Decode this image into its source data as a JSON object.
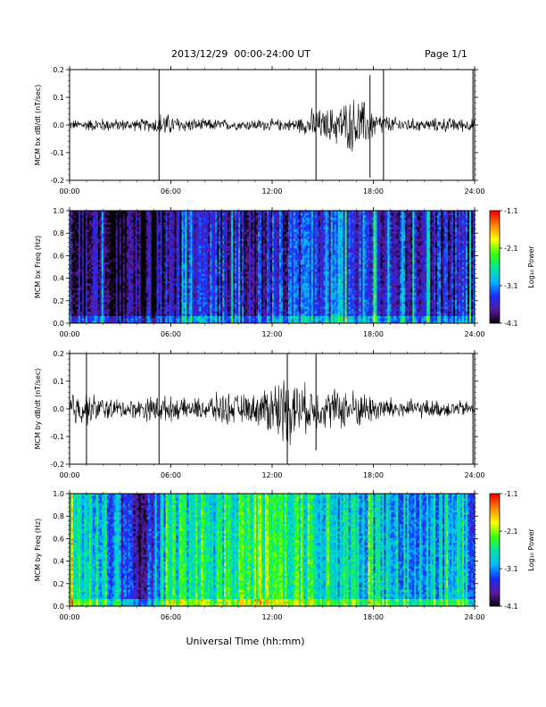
{
  "header": {
    "title": "2013/12/29  00:00-24:00 UT",
    "page": "Page 1/1"
  },
  "xaxis": {
    "ticks": [
      "00:00",
      "06:00",
      "12:00",
      "18:00",
      "24:00"
    ],
    "range_hours": [
      0,
      24
    ],
    "label": "Universal Time (hh:mm)"
  },
  "colorbar": {
    "ticks": [
      "-1.1",
      "-2.1",
      "-3.1",
      "-4.1"
    ],
    "label": "Log₁₀ Power",
    "colormap": [
      "#000000",
      "#5a1aa0",
      "#1a2cff",
      "#00b8ff",
      "#00e6a0",
      "#3cff00",
      "#ffff00",
      "#ff8800",
      "#ff0000"
    ]
  },
  "chart_data": [
    {
      "type": "line",
      "id": "bx_dbdt",
      "ylabel": "MCM bx dB/dt (nT/sec)",
      "ylim": [
        -0.2,
        0.2
      ],
      "yticks": [
        "0.2",
        "0.1",
        "0.0",
        "-0.1",
        "-0.2"
      ],
      "x_hours": [
        0,
        1,
        2,
        3,
        4,
        5,
        5.5,
        6,
        7,
        8,
        9,
        10,
        11,
        12,
        13,
        14,
        14.5,
        15,
        16,
        17,
        17.5,
        18,
        19,
        20,
        21,
        22,
        23,
        24
      ],
      "amplitude": [
        0.02,
        0.025,
        0.03,
        0.025,
        0.025,
        0.03,
        0.06,
        0.04,
        0.03,
        0.025,
        0.025,
        0.02,
        0.025,
        0.025,
        0.025,
        0.04,
        0.08,
        0.06,
        0.09,
        0.12,
        0.1,
        0.06,
        0.035,
        0.03,
        0.025,
        0.03,
        0.03,
        0.025
      ],
      "spikes": [
        {
          "x": 5.3,
          "min": -0.2,
          "max": 0.2
        },
        {
          "x": 14.6,
          "min": -0.2,
          "max": 0.2
        },
        {
          "x": 18.6,
          "min": -0.2,
          "max": 0.2
        },
        {
          "x": 23.9,
          "min": -0.2,
          "max": 0.2
        },
        {
          "x": 17.8,
          "min": -0.19,
          "max": 0.18
        }
      ]
    },
    {
      "type": "heatmap",
      "id": "bx_freq",
      "ylabel": "MCM bx Freq (Hz)",
      "ylim": [
        0,
        1.0
      ],
      "yticks": [
        "1.0",
        "0.8",
        "0.6",
        "0.4",
        "0.2",
        "0.0"
      ],
      "zlim": [
        -4.1,
        -1.1
      ],
      "x_hours": [
        0,
        2,
        4,
        6,
        8,
        10,
        12,
        14,
        16,
        18,
        20,
        22,
        24
      ],
      "level_log10_power": [
        -3.6,
        -3.9,
        -3.9,
        -3.7,
        -3.4,
        -3.6,
        -3.5,
        -3.3,
        -3.2,
        -3.3,
        -3.4,
        -3.5,
        -3.5
      ]
    },
    {
      "type": "line",
      "id": "by_dbdt",
      "ylabel": "MCM by dB/dt (nT/sec)",
      "ylim": [
        -0.2,
        0.2
      ],
      "yticks": [
        "0.2",
        "0.1",
        "0.0",
        "-0.1",
        "-0.2"
      ],
      "x_hours": [
        0,
        1,
        2,
        3,
        4,
        5,
        6,
        7,
        8,
        9,
        10,
        11,
        12,
        13,
        14,
        15,
        16,
        17,
        18,
        19,
        20,
        21,
        22,
        23,
        24
      ],
      "amplitude": [
        0.08,
        0.07,
        0.05,
        0.04,
        0.04,
        0.06,
        0.05,
        0.04,
        0.05,
        0.07,
        0.06,
        0.06,
        0.12,
        0.15,
        0.1,
        0.08,
        0.09,
        0.08,
        0.06,
        0.05,
        0.04,
        0.04,
        0.035,
        0.035,
        0.03
      ],
      "spikes": [
        {
          "x": 1.0,
          "min": -0.2,
          "max": 0.2
        },
        {
          "x": 5.3,
          "min": -0.2,
          "max": 0.2
        },
        {
          "x": 12.9,
          "min": -0.2,
          "max": 0.2
        },
        {
          "x": 14.6,
          "min": -0.15,
          "max": 0.2
        },
        {
          "x": 23.9,
          "min": -0.2,
          "max": 0.2
        }
      ]
    },
    {
      "type": "heatmap",
      "id": "by_freq",
      "ylabel": "MCM by Freq (Hz)",
      "ylim": [
        0,
        1.0
      ],
      "yticks": [
        "1.0",
        "0.8",
        "0.6",
        "0.4",
        "0.2",
        "0.0"
      ],
      "zlim": [
        -4.1,
        -1.1
      ],
      "x_hours": [
        0,
        2,
        4,
        6,
        8,
        10,
        12,
        14,
        16,
        18,
        20,
        22,
        24
      ],
      "level_log10_power": [
        -2.5,
        -2.7,
        -3.6,
        -2.6,
        -2.5,
        -2.5,
        -2.1,
        -2.4,
        -2.6,
        -2.7,
        -2.8,
        -2.8,
        -2.9
      ]
    }
  ]
}
